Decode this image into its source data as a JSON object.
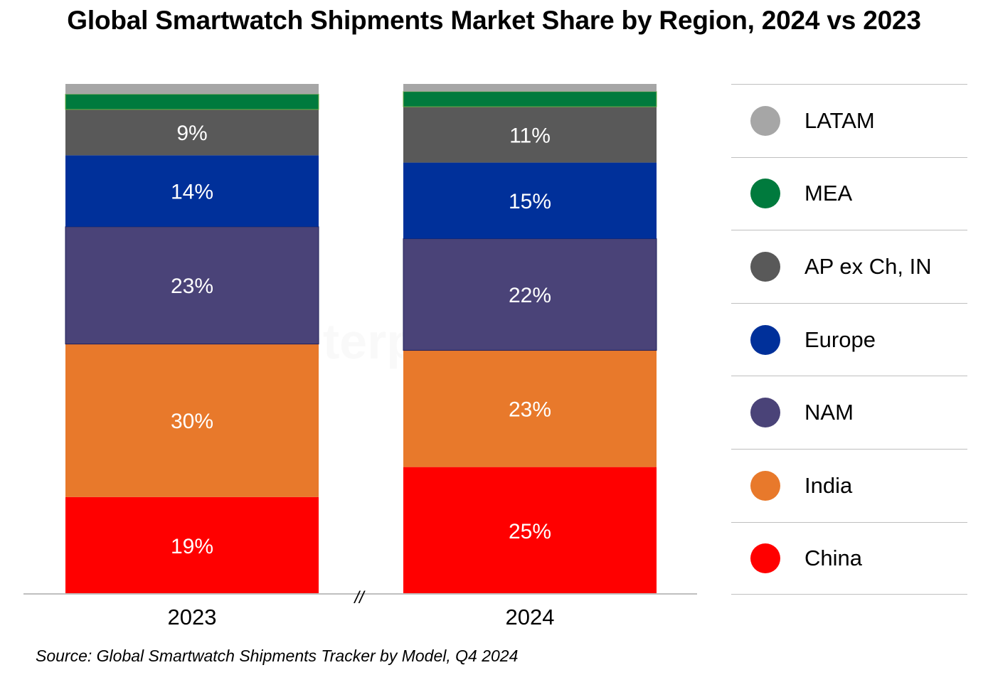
{
  "chart_data": {
    "type": "bar",
    "stacked": true,
    "title": "Global Smartwatch Shipments Market Share by Region, 2024 vs 2023",
    "xlabel": "",
    "ylabel": "",
    "ylim": [
      0,
      100
    ],
    "unit": "%",
    "categories": [
      "2023",
      "2024"
    ],
    "axis_break_marker": "//",
    "series": [
      {
        "name": "China",
        "color": "#ff0000",
        "values": [
          19,
          25
        ],
        "labels": [
          "19%",
          "25%"
        ]
      },
      {
        "name": "India",
        "color": "#e8792b",
        "values": [
          30,
          23
        ],
        "labels": [
          "30%",
          "23%"
        ]
      },
      {
        "name": "NAM",
        "color": "#4a4378",
        "values": [
          23,
          22
        ],
        "labels": [
          "23%",
          "22%"
        ]
      },
      {
        "name": "Europe",
        "color": "#00309a",
        "values": [
          14,
          15
        ],
        "labels": [
          "14%",
          "15%"
        ]
      },
      {
        "name": "AP ex Ch, IN",
        "color": "#595959",
        "values": [
          9,
          11
        ],
        "labels": [
          "9%",
          "11%"
        ]
      },
      {
        "name": "MEA",
        "color": "#007a3d",
        "values": [
          3,
          3
        ],
        "labels": [
          "",
          ""
        ]
      },
      {
        "name": "LATAM",
        "color": "#a6a6a6",
        "values": [
          2,
          1.5
        ],
        "labels": [
          "",
          ""
        ]
      }
    ],
    "legend": {
      "placement": "right",
      "entries": [
        "LATAM",
        "MEA",
        "AP ex Ch, IN",
        "Europe",
        "NAM",
        "India",
        "China"
      ]
    },
    "grid": false
  },
  "source_note": "Source: Global Smartwatch Shipments Tracker by Model, Q4 2024",
  "watermark": "Counterpoint"
}
